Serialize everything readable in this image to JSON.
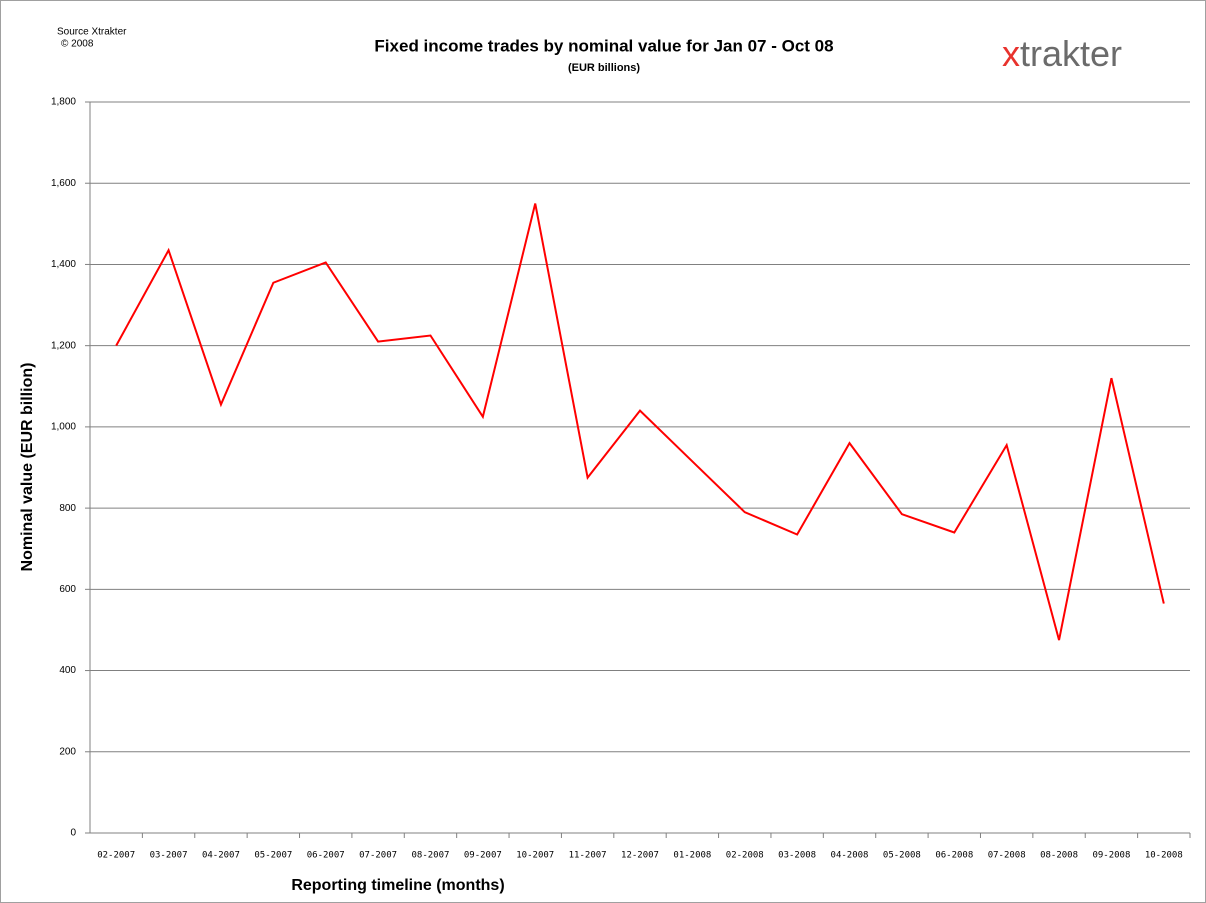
{
  "chart_data": {
    "type": "line",
    "source": "Source Xtrakter",
    "copyright": "© 2008",
    "title": "Fixed income trades by nominal value for Jan 07 - Oct 08",
    "subtitle": "(EUR billions)",
    "logo": {
      "mark": "x",
      "name": "trakter"
    },
    "y_label": "Nominal value (EUR billion)",
    "x_label": "Reporting timeline  (months)",
    "categories": [
      "02-2007",
      "03-2007",
      "04-2007",
      "05-2007",
      "06-2007",
      "07-2007",
      "08-2007",
      "09-2007",
      "10-2007",
      "11-2007",
      "12-2007",
      "01-2008",
      "02-2008",
      "03-2008",
      "04-2008",
      "05-2008",
      "06-2008",
      "07-2008",
      "08-2008",
      "09-2008",
      "10-2008"
    ],
    "series": [
      {
        "name": "Nominal value",
        "color": "#ff0000",
        "values": [
          1200,
          1435,
          1055,
          1355,
          1405,
          1210,
          1225,
          1025,
          1550,
          875,
          1040,
          915,
          790,
          735,
          960,
          785,
          740,
          955,
          475,
          1120,
          565
        ]
      }
    ],
    "ylim": [
      0,
      1800
    ],
    "yticks": [
      0,
      200,
      400,
      600,
      800,
      {
        "value": 1000,
        "label": "1,000"
      },
      {
        "value": 1200,
        "label": "1,200"
      },
      {
        "value": 1400,
        "label": "1,400"
      },
      {
        "value": 1600,
        "label": "1,600"
      },
      {
        "value": 1800,
        "label": "1,800"
      }
    ],
    "grid": true
  }
}
